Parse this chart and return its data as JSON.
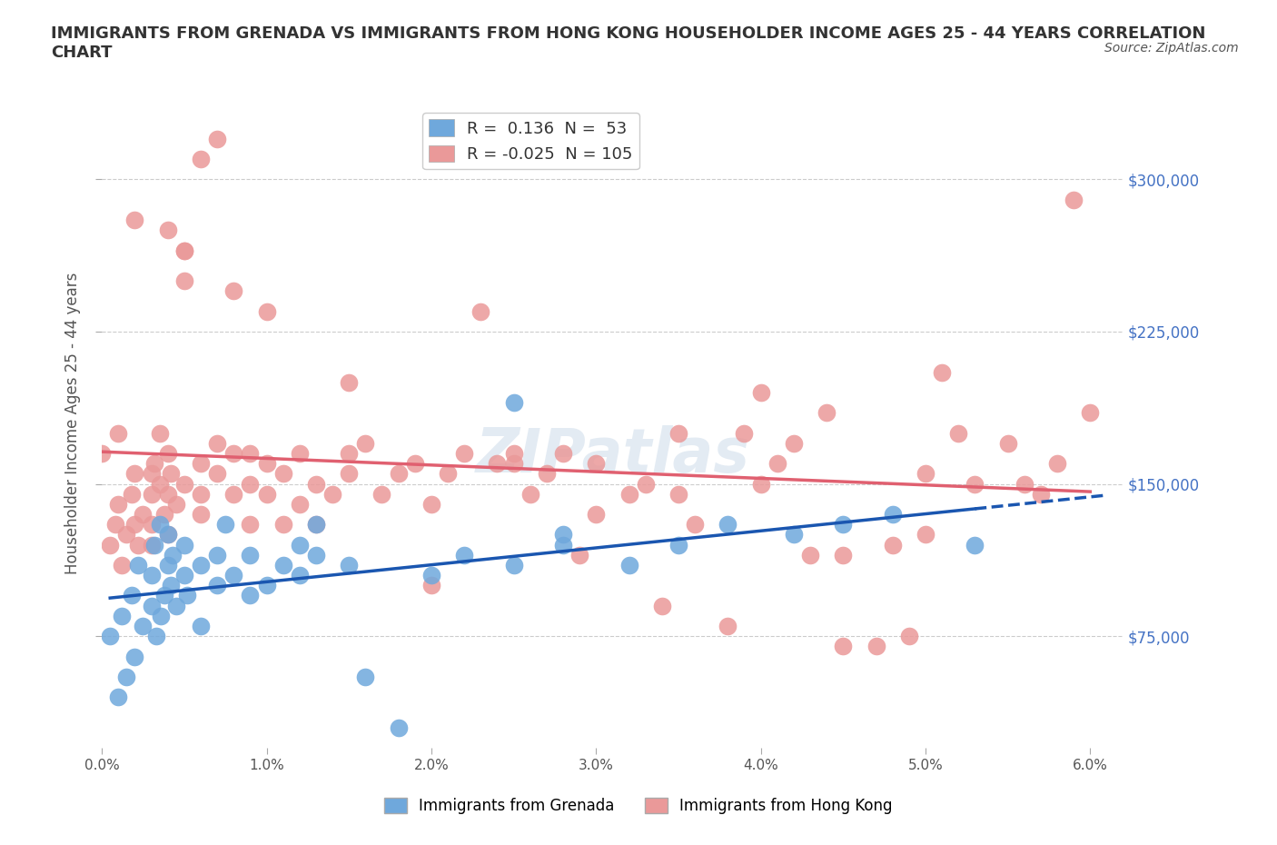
{
  "title": "IMMIGRANTS FROM GRENADA VS IMMIGRANTS FROM HONG KONG HOUSEHOLDER INCOME AGES 25 - 44 YEARS CORRELATION\nCHART",
  "source": "Source: ZipAtlas.com",
  "xlabel": "",
  "ylabel": "Householder Income Ages 25 - 44 years",
  "xlim": [
    0.0,
    0.062
  ],
  "ylim": [
    20000,
    340000
  ],
  "yticks": [
    75000,
    150000,
    225000,
    300000
  ],
  "ytick_labels": [
    "$75,000",
    "$150,000",
    "$225,000",
    "$300,000"
  ],
  "xticks": [
    0.0,
    0.01,
    0.02,
    0.03,
    0.04,
    0.05,
    0.06
  ],
  "xtick_labels": [
    "0.0%",
    "1.0%",
    "2.0%",
    "3.0%",
    "4.0%",
    "5.0%",
    "6.0%"
  ],
  "grenada_color": "#6fa8dc",
  "hong_kong_color": "#ea9999",
  "grenada_R": 0.136,
  "grenada_N": 53,
  "hong_kong_R": -0.025,
  "hong_kong_N": 105,
  "grenada_line_color": "#1a56b0",
  "hong_kong_line_color": "#e06070",
  "watermark": "ZIPatlas",
  "grenada_x": [
    0.0005,
    0.001,
    0.0012,
    0.0015,
    0.0018,
    0.002,
    0.0022,
    0.0025,
    0.003,
    0.003,
    0.0032,
    0.0033,
    0.0035,
    0.0036,
    0.0038,
    0.004,
    0.004,
    0.0042,
    0.0043,
    0.0045,
    0.005,
    0.005,
    0.0052,
    0.006,
    0.006,
    0.007,
    0.007,
    0.0075,
    0.008,
    0.009,
    0.009,
    0.01,
    0.011,
    0.012,
    0.012,
    0.013,
    0.013,
    0.015,
    0.016,
    0.018,
    0.02,
    0.022,
    0.025,
    0.025,
    0.028,
    0.028,
    0.032,
    0.035,
    0.038,
    0.042,
    0.045,
    0.048,
    0.053
  ],
  "grenada_y": [
    75000,
    45000,
    85000,
    55000,
    95000,
    65000,
    110000,
    80000,
    90000,
    105000,
    120000,
    75000,
    130000,
    85000,
    95000,
    110000,
    125000,
    100000,
    115000,
    90000,
    105000,
    120000,
    95000,
    80000,
    110000,
    100000,
    115000,
    130000,
    105000,
    95000,
    115000,
    100000,
    110000,
    120000,
    105000,
    130000,
    115000,
    110000,
    55000,
    30000,
    105000,
    115000,
    190000,
    110000,
    120000,
    125000,
    110000,
    120000,
    130000,
    125000,
    130000,
    135000,
    120000
  ],
  "hong_kong_x": [
    0.0005,
    0.0008,
    0.001,
    0.0012,
    0.0015,
    0.0018,
    0.002,
    0.002,
    0.0022,
    0.0025,
    0.003,
    0.003,
    0.003,
    0.0032,
    0.0035,
    0.0035,
    0.0038,
    0.004,
    0.004,
    0.004,
    0.0042,
    0.0045,
    0.005,
    0.005,
    0.005,
    0.006,
    0.006,
    0.006,
    0.007,
    0.007,
    0.008,
    0.008,
    0.009,
    0.009,
    0.01,
    0.01,
    0.011,
    0.011,
    0.012,
    0.012,
    0.013,
    0.013,
    0.014,
    0.015,
    0.015,
    0.016,
    0.017,
    0.018,
    0.019,
    0.02,
    0.021,
    0.022,
    0.023,
    0.024,
    0.025,
    0.026,
    0.027,
    0.028,
    0.029,
    0.03,
    0.032,
    0.033,
    0.034,
    0.035,
    0.036,
    0.038,
    0.039,
    0.04,
    0.041,
    0.042,
    0.043,
    0.044,
    0.045,
    0.047,
    0.048,
    0.049,
    0.05,
    0.051,
    0.052,
    0.053,
    0.055,
    0.056,
    0.057,
    0.058,
    0.059,
    0.06,
    0.0,
    0.001,
    0.002,
    0.003,
    0.004,
    0.005,
    0.006,
    0.007,
    0.008,
    0.009,
    0.01,
    0.015,
    0.02,
    0.025,
    0.03,
    0.035,
    0.04,
    0.045,
    0.05
  ],
  "hong_kong_y": [
    120000,
    130000,
    140000,
    110000,
    125000,
    145000,
    130000,
    155000,
    120000,
    135000,
    145000,
    130000,
    120000,
    160000,
    175000,
    150000,
    135000,
    165000,
    145000,
    125000,
    155000,
    140000,
    265000,
    250000,
    150000,
    145000,
    160000,
    135000,
    155000,
    170000,
    145000,
    165000,
    150000,
    130000,
    160000,
    145000,
    155000,
    130000,
    165000,
    140000,
    150000,
    130000,
    145000,
    200000,
    155000,
    170000,
    145000,
    155000,
    160000,
    140000,
    155000,
    165000,
    235000,
    160000,
    165000,
    145000,
    155000,
    165000,
    115000,
    160000,
    145000,
    150000,
    90000,
    175000,
    130000,
    80000,
    175000,
    195000,
    160000,
    170000,
    115000,
    185000,
    70000,
    70000,
    120000,
    75000,
    125000,
    205000,
    175000,
    150000,
    170000,
    150000,
    145000,
    160000,
    290000,
    185000,
    165000,
    175000,
    280000,
    155000,
    275000,
    265000,
    310000,
    320000,
    245000,
    165000,
    235000,
    165000,
    100000,
    160000,
    135000,
    145000,
    150000,
    115000,
    155000
  ]
}
